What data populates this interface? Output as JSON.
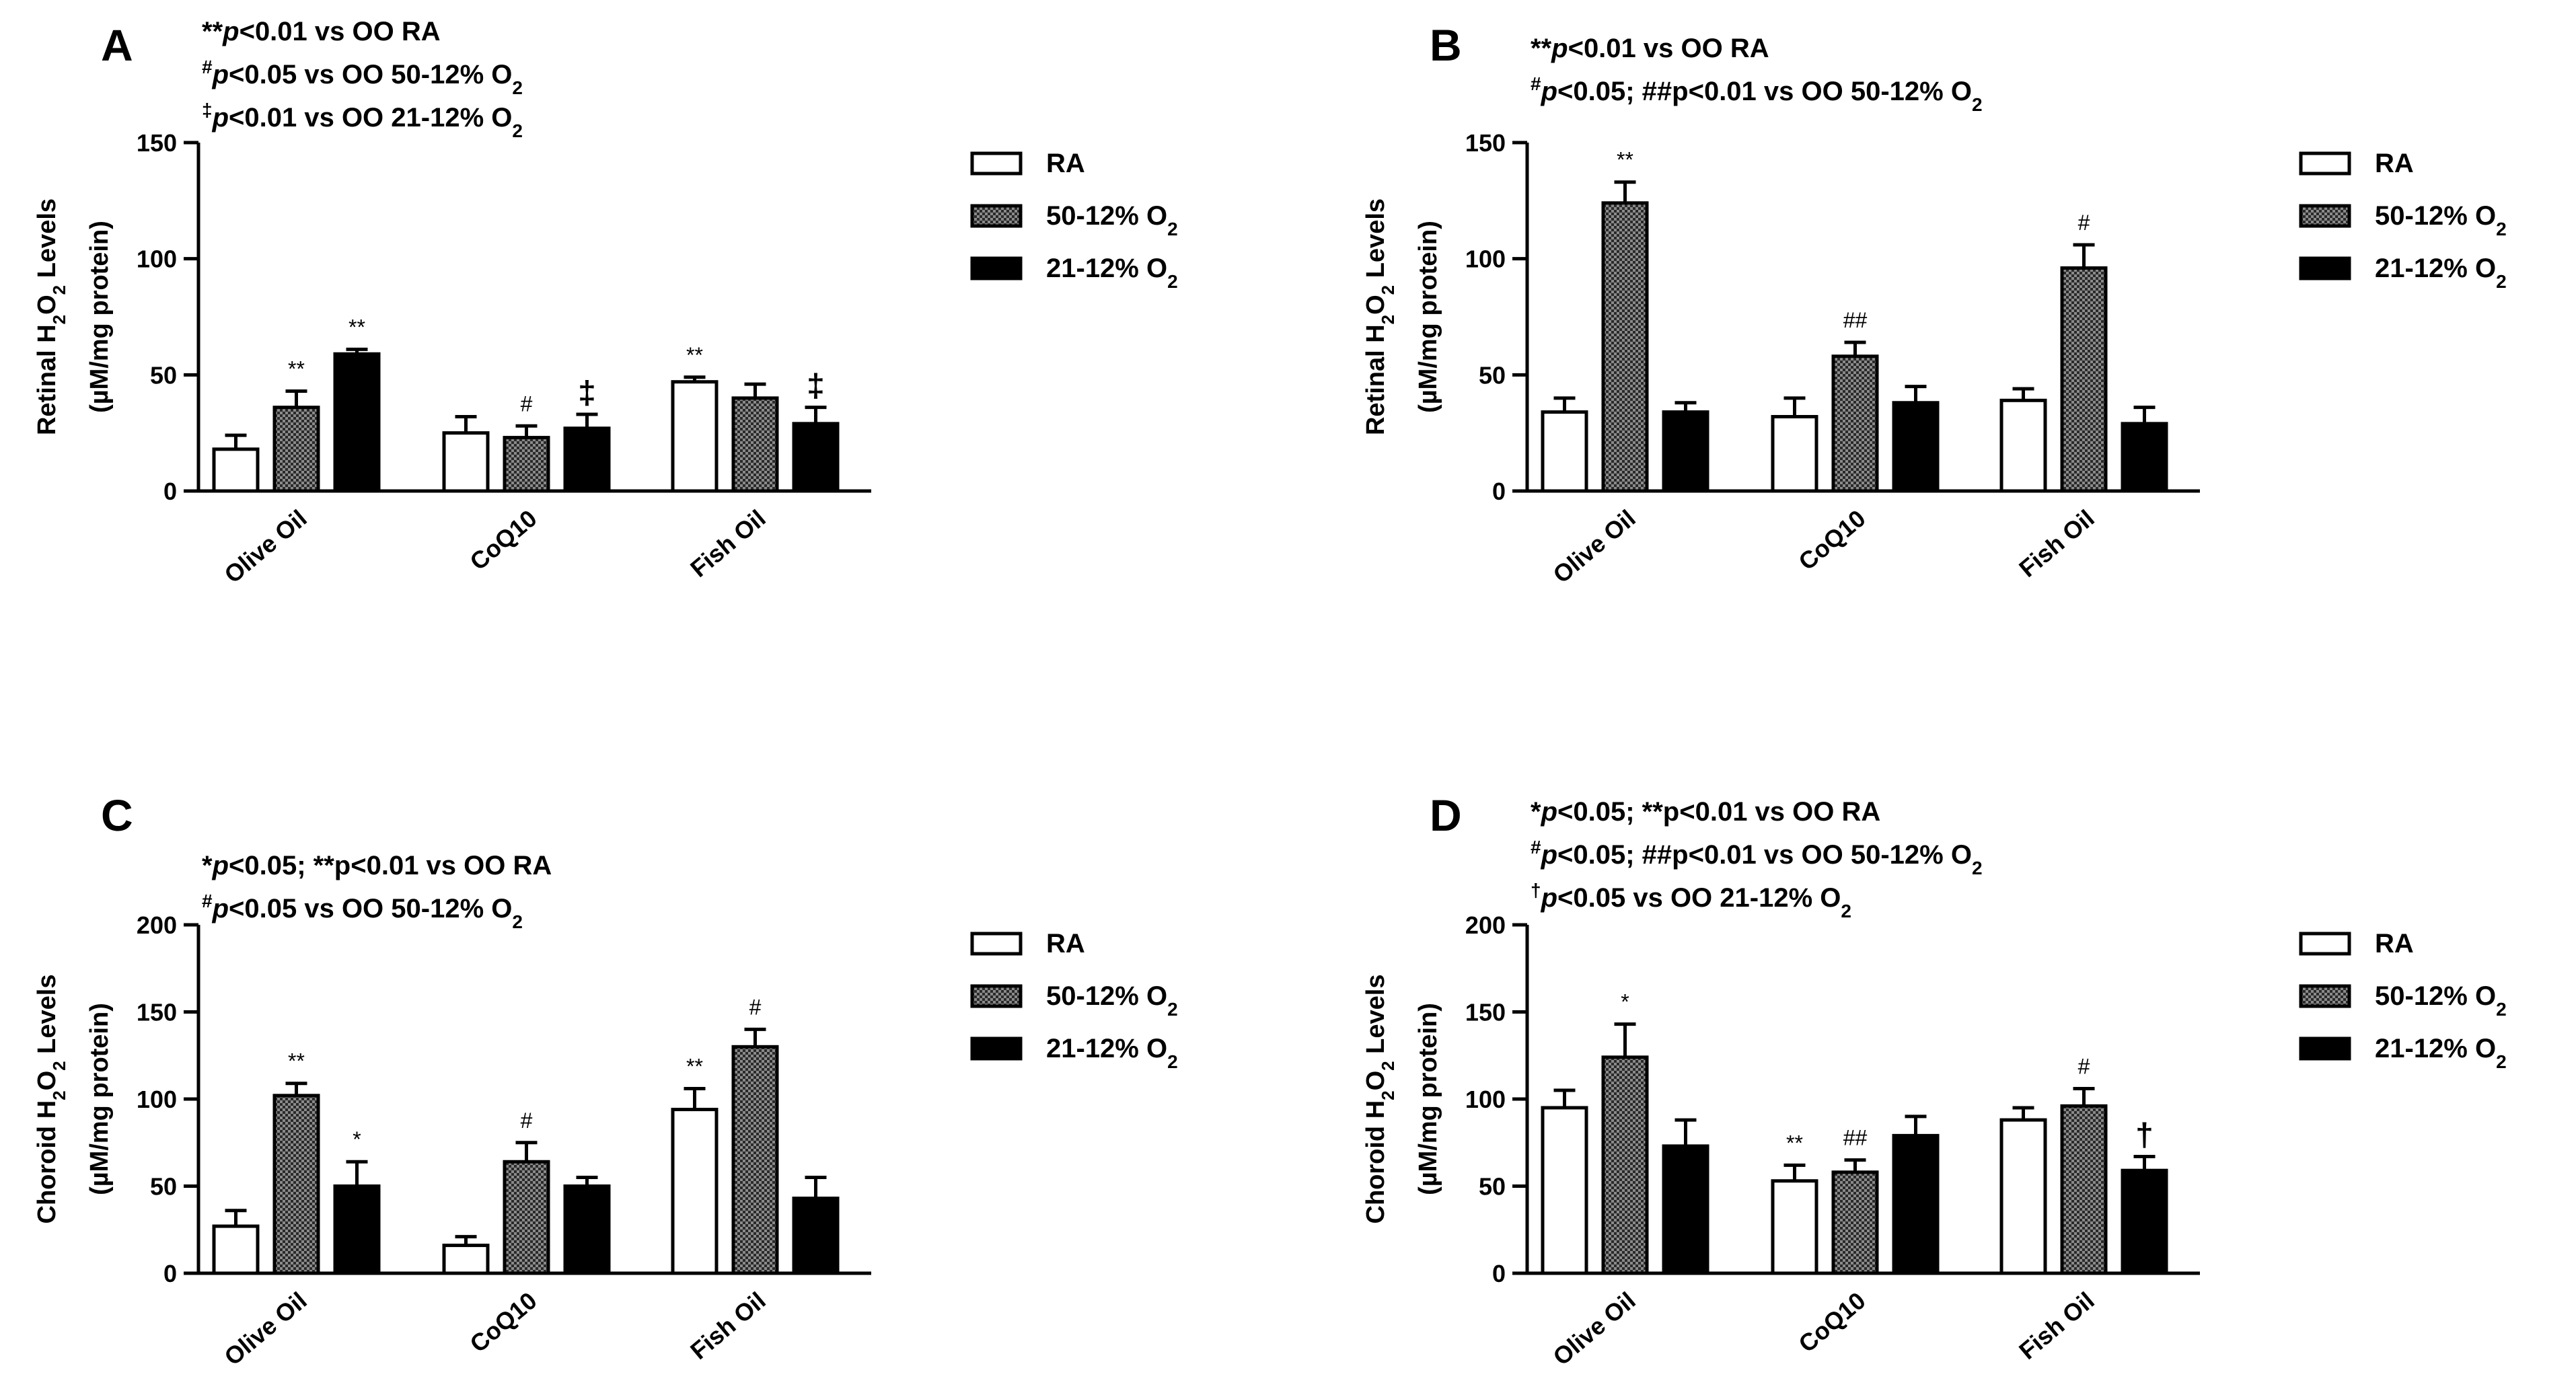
{
  "colors": {
    "axis": "#000000",
    "ra_fill": "#ffffff",
    "o50_fill": "#6a6a6a",
    "o21_fill": "#000000"
  },
  "legend_labels": [
    "RA",
    "50-12% O",
    "21-12% O"
  ],
  "legend_sub": "2",
  "chart_data": [
    {
      "panel": "A",
      "type": "bar",
      "categories": [
        "Olive Oil",
        "CoQ10",
        "Fish Oil"
      ],
      "series": [
        {
          "name": "RA",
          "values": [
            18,
            25,
            47
          ],
          "errors": [
            6,
            7,
            2
          ]
        },
        {
          "name": "50-12% O2",
          "values": [
            36,
            23,
            40
          ],
          "errors": [
            7,
            5,
            6
          ]
        },
        {
          "name": "21-12% O2",
          "values": [
            59,
            27,
            29
          ],
          "errors": [
            2,
            6,
            7
          ]
        }
      ],
      "significance": [
        [
          "",
          "",
          "**"
        ],
        [
          "**",
          "#",
          ""
        ],
        [
          "**",
          "‡",
          "‡"
        ]
      ],
      "ylabel_prefix": "Retinal H",
      "ylabel_sub": "2",
      "ylabel_mid": "O",
      "ylabel_sub2": "2",
      "ylabel_suffix": " Levels",
      "ylabel_line2": "(µM/mg protein)",
      "ylim": [
        0,
        150
      ],
      "yticks": [
        "0",
        "50",
        "100",
        "150"
      ],
      "stats": [
        {
          "sup": "",
          "prefix": "**",
          "p": "p",
          "rest": "<0.01 vs OO RA",
          "sub": ""
        },
        {
          "sup": "#",
          "prefix": "",
          "p": "p",
          "rest": "<0.05 vs OO 50-12% O",
          "sub": "2"
        },
        {
          "sup": "‡",
          "prefix": "",
          "p": "p",
          "rest": "<0.01 vs OO 21-12% O",
          "sub": "2"
        }
      ]
    },
    {
      "panel": "B",
      "type": "bar",
      "categories": [
        "Olive Oil",
        "CoQ10",
        "Fish Oil"
      ],
      "series": [
        {
          "name": "RA",
          "values": [
            34,
            32,
            39
          ],
          "errors": [
            6,
            8,
            5
          ]
        },
        {
          "name": "50-12% O2",
          "values": [
            124,
            58,
            96
          ],
          "errors": [
            9,
            6,
            10
          ]
        },
        {
          "name": "21-12% O2",
          "values": [
            34,
            38,
            29
          ],
          "errors": [
            4,
            7,
            7
          ]
        }
      ],
      "significance": [
        [
          "",
          "",
          ""
        ],
        [
          "**",
          "##",
          "#"
        ],
        [
          "",
          "",
          ""
        ]
      ],
      "ylabel_prefix": "Retinal H",
      "ylabel_sub": "2",
      "ylabel_mid": "O",
      "ylabel_sub2": "2",
      "ylabel_suffix": " Levels",
      "ylabel_line2": "(µM/mg protein)",
      "ylim": [
        0,
        150
      ],
      "yticks": [
        "0",
        "50",
        "100",
        "150"
      ],
      "stats": [
        {
          "sup": "",
          "prefix": "**",
          "p": "p",
          "rest": "<0.01 vs OO RA",
          "sub": ""
        },
        {
          "sup": "#",
          "prefix": "",
          "p": "p",
          "rest": "<0.05; ##p<0.01 vs OO 50-12% O",
          "sub": "2"
        }
      ]
    },
    {
      "panel": "C",
      "type": "bar",
      "categories": [
        "Olive Oil",
        "CoQ10",
        "Fish Oil"
      ],
      "series": [
        {
          "name": "RA",
          "values": [
            27,
            16,
            94
          ],
          "errors": [
            9,
            5,
            12
          ]
        },
        {
          "name": "50-12% O2",
          "values": [
            102,
            64,
            130
          ],
          "errors": [
            7,
            11,
            10
          ]
        },
        {
          "name": "21-12% O2",
          "values": [
            50,
            50,
            43
          ],
          "errors": [
            14,
            5,
            12
          ]
        }
      ],
      "significance": [
        [
          "",
          "",
          "**"
        ],
        [
          "**",
          "#",
          "#"
        ],
        [
          "*",
          "",
          ""
        ]
      ],
      "ylabel_prefix": "Choroid H",
      "ylabel_sub": "2",
      "ylabel_mid": "O",
      "ylabel_sub2": "2",
      "ylabel_suffix": " Levels",
      "ylabel_line2": "(µM/mg protein)",
      "ylim": [
        0,
        200
      ],
      "yticks": [
        "0",
        "50",
        "100",
        "150",
        "200"
      ],
      "stats": [
        {
          "sup": "",
          "prefix": "*",
          "p": "p",
          "rest": "<0.05; **p<0.01 vs OO RA",
          "sub": ""
        },
        {
          "sup": "#",
          "prefix": "",
          "p": "p",
          "rest": "<0.05 vs OO 50-12% O",
          "sub": "2"
        }
      ]
    },
    {
      "panel": "D",
      "type": "bar",
      "categories": [
        "Olive Oil",
        "CoQ10",
        "Fish Oil"
      ],
      "series": [
        {
          "name": "RA",
          "values": [
            95,
            53,
            88
          ],
          "errors": [
            10,
            9,
            7
          ]
        },
        {
          "name": "50-12% O2",
          "values": [
            124,
            58,
            96
          ],
          "errors": [
            19,
            7,
            10
          ]
        },
        {
          "name": "21-12% O2",
          "values": [
            73,
            79,
            59
          ],
          "errors": [
            15,
            11,
            8
          ]
        }
      ],
      "significance": [
        [
          "",
          "**",
          ""
        ],
        [
          "*",
          "##",
          "#"
        ],
        [
          "",
          "",
          "†"
        ]
      ],
      "ylabel_prefix": "Choroid H",
      "ylabel_sub": "2",
      "ylabel_mid": "O",
      "ylabel_sub2": "2",
      "ylabel_suffix": " Levels",
      "ylabel_line2": "(µM/mg protein)",
      "ylim": [
        0,
        200
      ],
      "yticks": [
        "0",
        "50",
        "100",
        "150",
        "200"
      ],
      "stats": [
        {
          "sup": "",
          "prefix": "*",
          "p": "p",
          "rest": "<0.05; **p<0.01 vs OO RA",
          "sub": ""
        },
        {
          "sup": "#",
          "prefix": "",
          "p": "p",
          "rest": "<0.05; ##p<0.01 vs OO 50-12% O",
          "sub": "2"
        },
        {
          "sup": "†",
          "prefix": "",
          "p": "p",
          "rest": "<0.05 vs OO 21-12% O",
          "sub": "2"
        }
      ]
    }
  ]
}
